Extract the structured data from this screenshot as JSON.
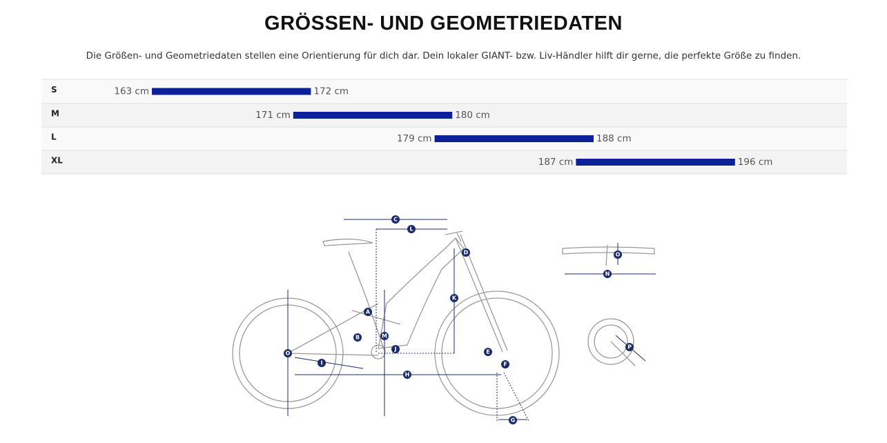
{
  "header": {
    "title": "GRÖSSEN- UND GEOMETRIEDATEN",
    "description": "Die Größen- und Geometriedaten stellen eine Orientierung für dich dar. Dein lokaler GIANT- bzw. Liv-Händler hilft dir gerne, die perfekte Größe zu finden."
  },
  "sizes": {
    "rows": [
      {
        "size": "S",
        "from": {
          "value": 163,
          "label": "163 cm"
        },
        "to": {
          "value": 172,
          "label": "172 cm"
        }
      },
      {
        "size": "M",
        "from": {
          "value": 171,
          "label": "171 cm"
        },
        "to": {
          "value": 180,
          "label": "180 cm"
        }
      },
      {
        "size": "L",
        "from": {
          "value": 179,
          "label": "179 cm"
        },
        "to": {
          "value": 188,
          "label": "188 cm"
        }
      },
      {
        "size": "XL",
        "from": {
          "value": 187,
          "label": "187 cm"
        },
        "to": {
          "value": 196,
          "label": "196 cm"
        }
      }
    ],
    "color": "#0d2196"
  },
  "diagram": {
    "labels": [
      "C",
      "L",
      "D",
      "K",
      "A",
      "M",
      "B",
      "J",
      "O",
      "I",
      "E",
      "F",
      "H",
      "G",
      "O",
      "N",
      "P"
    ]
  }
}
